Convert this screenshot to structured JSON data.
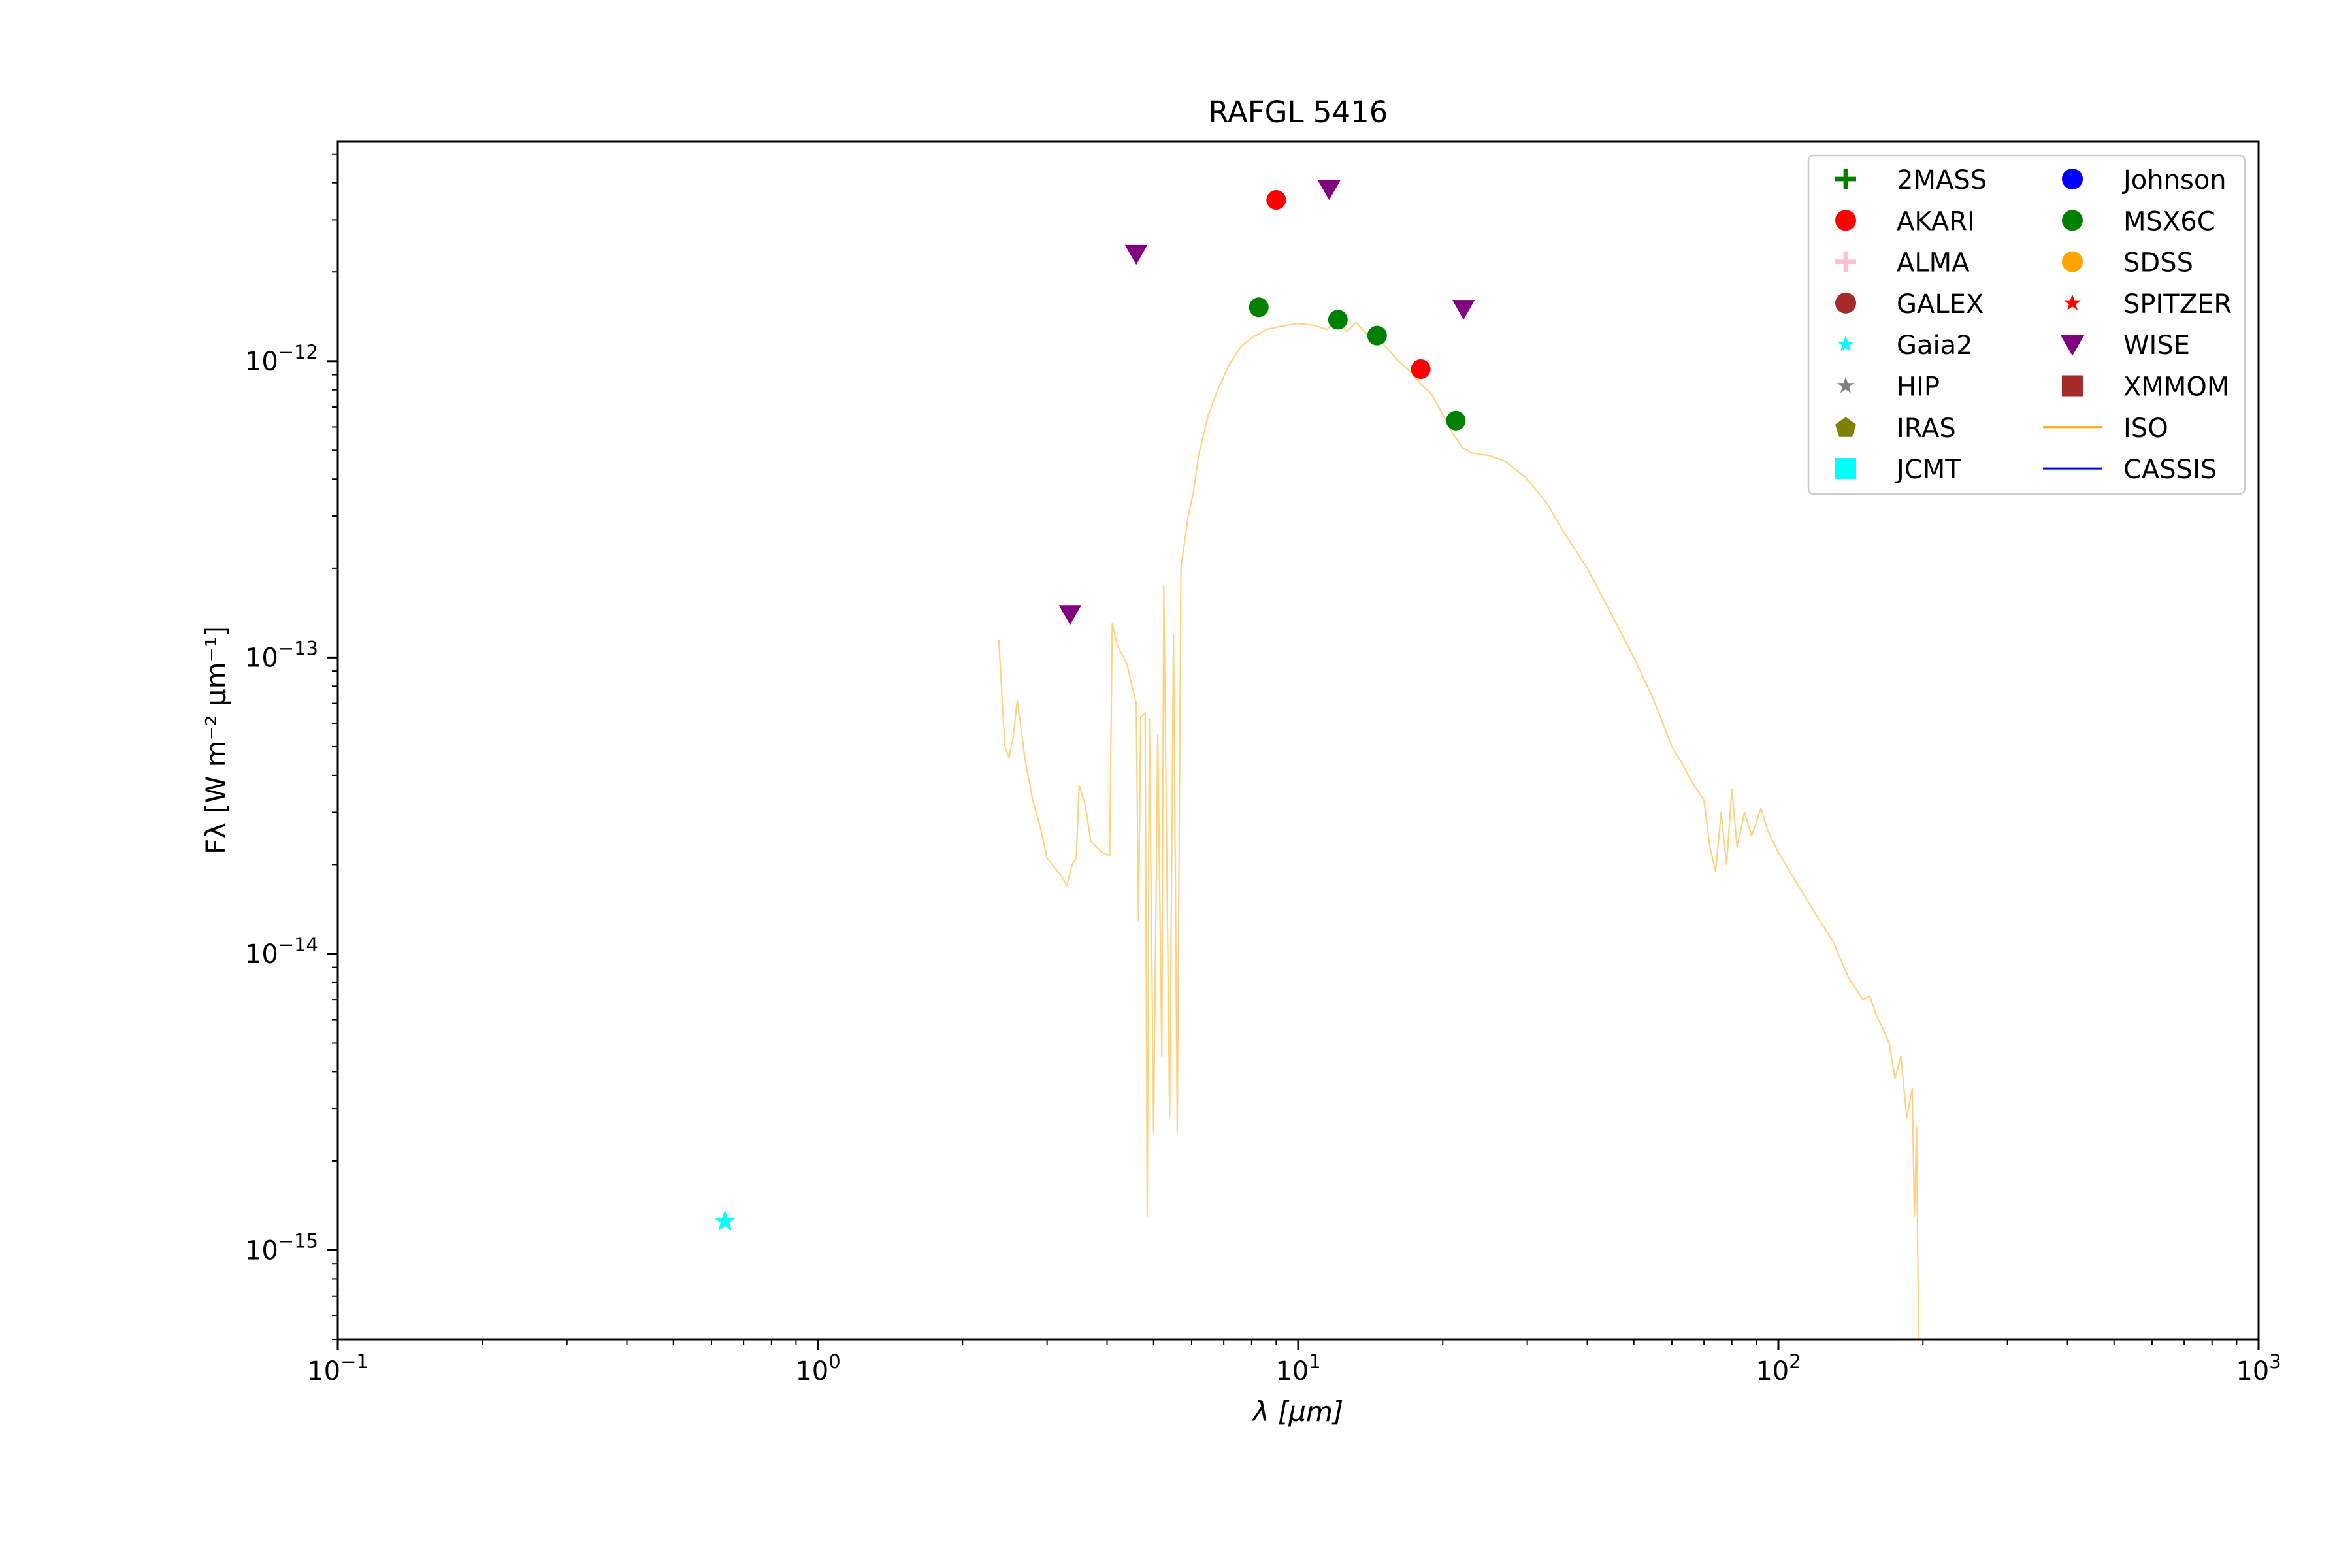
{
  "chart_data": {
    "type": "scatter",
    "title": "RAFGL 5416",
    "xlabel": "λ [μm]",
    "ylabel": "Fλ [W m⁻² μm⁻¹]",
    "xscale": "log",
    "yscale": "log",
    "xlim": [
      0.1,
      1000
    ],
    "ylim": [
      5e-16,
      5.5e-12
    ],
    "grid": false,
    "legend_placement": "top-right",
    "x_ticks": [
      {
        "base": "10",
        "exp": "−1",
        "value": 0.1
      },
      {
        "base": "10",
        "exp": "0",
        "value": 1
      },
      {
        "base": "10",
        "exp": "1",
        "value": 10
      },
      {
        "base": "10",
        "exp": "2",
        "value": 100
      },
      {
        "base": "10",
        "exp": "3",
        "value": 1000
      }
    ],
    "y_ticks": [
      {
        "base": "10",
        "exp": "−15",
        "value": 1e-15
      },
      {
        "base": "10",
        "exp": "−14",
        "value": 1e-14
      },
      {
        "base": "10",
        "exp": "−13",
        "value": 1e-13
      },
      {
        "base": "10",
        "exp": "−12",
        "value": 1e-12
      }
    ],
    "legend": [
      {
        "name": "2MASS",
        "marker": "plus",
        "color": "#008000"
      },
      {
        "name": "AKARI",
        "marker": "circle",
        "color": "#ff0000"
      },
      {
        "name": "ALMA",
        "marker": "plus",
        "color": "#ffc0cb"
      },
      {
        "name": "GALEX",
        "marker": "circle",
        "color": "#a52a2a"
      },
      {
        "name": "Gaia2",
        "marker": "star",
        "color": "#00ffff"
      },
      {
        "name": "HIP",
        "marker": "star",
        "color": "#808080"
      },
      {
        "name": "IRAS",
        "marker": "pentagon",
        "color": "#808000"
      },
      {
        "name": "JCMT",
        "marker": "square",
        "color": "#00ffff"
      },
      {
        "name": "Johnson",
        "marker": "circle",
        "color": "#0000ff"
      },
      {
        "name": "MSX6C",
        "marker": "circle",
        "color": "#008000"
      },
      {
        "name": "SDSS",
        "marker": "circle",
        "color": "#ffa500"
      },
      {
        "name": "SPITZER",
        "marker": "star",
        "color": "#ff0000"
      },
      {
        "name": "WISE",
        "marker": "triangle-down",
        "color": "#800080"
      },
      {
        "name": "XMMOM",
        "marker": "square",
        "color": "#a52a2a"
      },
      {
        "name": "ISO",
        "marker": "line",
        "color": "#ffa500"
      },
      {
        "name": "CASSIS",
        "marker": "line",
        "color": "#0000ff"
      }
    ],
    "series": [
      {
        "name": "AKARI",
        "marker": "circle",
        "color": "#ff0000",
        "points": [
          [
            9.0,
            3.5e-12
          ],
          [
            18.0,
            9.4e-13
          ]
        ]
      },
      {
        "name": "MSX6C",
        "marker": "circle",
        "color": "#008000",
        "points": [
          [
            8.28,
            1.52e-12
          ],
          [
            12.1,
            1.38e-12
          ],
          [
            14.6,
            1.22e-12
          ],
          [
            21.3,
            6.3e-13
          ]
        ]
      },
      {
        "name": "WISE",
        "marker": "triangle-down",
        "color": "#800080",
        "points": [
          [
            3.35,
            1.4e-13
          ],
          [
            4.6,
            2.3e-12
          ],
          [
            11.6,
            3.8e-12
          ],
          [
            22.1,
            1.5e-12
          ]
        ]
      },
      {
        "name": "Gaia2",
        "marker": "star",
        "color": "#00ffff",
        "points": [
          [
            0.64,
            1.25e-15
          ]
        ]
      }
    ],
    "iso_spectrum": {
      "name": "ISO",
      "color": "#ffa500",
      "points": [
        [
          2.38,
          1.15e-13
        ],
        [
          2.45,
          5e-14
        ],
        [
          2.5,
          4.6e-14
        ],
        [
          2.55,
          5.4e-14
        ],
        [
          2.6,
          7.2e-14
        ],
        [
          2.7,
          4.5e-14
        ],
        [
          2.8,
          3.3e-14
        ],
        [
          2.9,
          2.7e-14
        ],
        [
          3.0,
          2.1e-14
        ],
        [
          3.2,
          1.85e-14
        ],
        [
          3.3,
          1.7e-14
        ],
        [
          3.38,
          2e-14
        ],
        [
          3.45,
          2.1e-14
        ],
        [
          3.5,
          3.7e-14
        ],
        [
          3.6,
          3.2e-14
        ],
        [
          3.7,
          2.4e-14
        ],
        [
          3.9,
          2.2e-14
        ],
        [
          4.05,
          2.15e-14
        ],
        [
          4.1,
          1.3e-13
        ],
        [
          4.2,
          1.1e-13
        ],
        [
          4.4,
          9.5e-14
        ],
        [
          4.6,
          7e-14
        ],
        [
          4.65,
          1.3e-14
        ],
        [
          4.7,
          6.3e-14
        ],
        [
          4.8,
          6.5e-14
        ],
        [
          4.85,
          1.3e-15
        ],
        [
          4.9,
          6.2e-14
        ],
        [
          5.0,
          2.5e-15
        ],
        [
          5.1,
          5.5e-14
        ],
        [
          5.2,
          4.5e-15
        ],
        [
          5.25,
          1.75e-13
        ],
        [
          5.4,
          2.8e-15
        ],
        [
          5.5,
          1.2e-13
        ],
        [
          5.6,
          2.5e-15
        ],
        [
          5.7,
          2e-13
        ],
        [
          5.9,
          3e-13
        ],
        [
          6.05,
          3.6e-13
        ],
        [
          6.2,
          4.8e-13
        ],
        [
          6.5,
          6.6e-13
        ],
        [
          6.8,
          8e-13
        ],
        [
          7.2,
          9.8e-13
        ],
        [
          7.6,
          1.12e-12
        ],
        [
          8.0,
          1.2e-12
        ],
        [
          8.6,
          1.28e-12
        ],
        [
          9.2,
          1.31e-12
        ],
        [
          10.0,
          1.34e-12
        ],
        [
          10.8,
          1.32e-12
        ],
        [
          11.5,
          1.28e-12
        ],
        [
          12.0,
          1.4e-12
        ],
        [
          12.6,
          1.26e-12
        ],
        [
          13.2,
          1.35e-12
        ],
        [
          14.0,
          1.22e-12
        ],
        [
          15.0,
          1.15e-12
        ],
        [
          16.0,
          1.02e-12
        ],
        [
          17.0,
          9.3e-13
        ],
        [
          18.0,
          8.4e-13
        ],
        [
          19.0,
          7.7e-13
        ],
        [
          20.0,
          6.6e-13
        ],
        [
          21.0,
          5.7e-13
        ],
        [
          22.0,
          5.1e-13
        ],
        [
          23.0,
          4.9e-13
        ],
        [
          25.0,
          4.8e-13
        ],
        [
          27.0,
          4.6e-13
        ],
        [
          30.0,
          4e-13
        ],
        [
          33.0,
          3.3e-13
        ],
        [
          36.0,
          2.6e-13
        ],
        [
          40.0,
          2e-13
        ],
        [
          43.0,
          1.6e-13
        ],
        [
          46.0,
          1.3e-13
        ],
        [
          50.0,
          1e-13
        ],
        [
          55.0,
          7.2e-14
        ],
        [
          60.0,
          5e-14
        ],
        [
          63.0,
          4.4e-14
        ],
        [
          66.0,
          3.8e-14
        ],
        [
          70.0,
          3.3e-14
        ],
        [
          72.0,
          2.3e-14
        ],
        [
          74.0,
          1.9e-14
        ],
        [
          76.0,
          3e-14
        ],
        [
          78.0,
          2e-14
        ],
        [
          80.0,
          3.6e-14
        ],
        [
          82.0,
          2.3e-14
        ],
        [
          85.0,
          3e-14
        ],
        [
          88.0,
          2.5e-14
        ],
        [
          92.0,
          3.1e-14
        ],
        [
          95.0,
          2.6e-14
        ],
        [
          100.0,
          2.2e-14
        ],
        [
          110.0,
          1.7e-14
        ],
        [
          120.0,
          1.35e-14
        ],
        [
          130.0,
          1.1e-14
        ],
        [
          140.0,
          8.3e-15
        ],
        [
          150.0,
          7e-15
        ],
        [
          155.0,
          7.2e-15
        ],
        [
          160.0,
          6.2e-15
        ],
        [
          165.0,
          5.6e-15
        ],
        [
          170.0,
          5e-15
        ],
        [
          175.0,
          3.8e-15
        ],
        [
          180.0,
          4.5e-15
        ],
        [
          185.0,
          2.8e-15
        ],
        [
          190.0,
          3.5e-15
        ],
        [
          192.0,
          1.3e-15
        ],
        [
          194.0,
          2.6e-15
        ],
        [
          195.0,
          1e-15
        ],
        [
          196.0,
          5e-16
        ]
      ]
    }
  }
}
